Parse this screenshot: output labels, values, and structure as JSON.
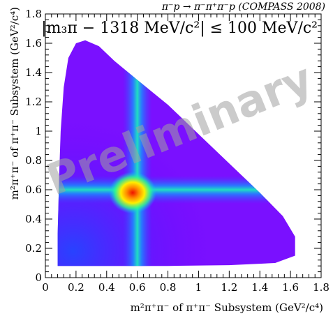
{
  "chart_data": {
    "type": "heatmap",
    "reaction_label": "π⁻p → π⁻π⁺π⁻p (COMPASS 2008)",
    "cut_label": "|m₃π − 1318 MeV/c²| ≤ 100 MeV/c²",
    "watermark": "Preliminary",
    "xlabel": "m²π⁺π⁻ of π⁺π⁻ Subsystem (GeV²/c⁴)",
    "ylabel": "m²π⁺π⁻ of π⁺π⁻ Subsystem (GeV²/c⁴)",
    "xlim": [
      0,
      1.8
    ],
    "ylim": [
      0,
      1.8
    ],
    "x_ticks": [
      "0",
      "0.2",
      "0.4",
      "0.6",
      "0.8",
      "1",
      "1.2",
      "1.4",
      "1.6",
      "1.8"
    ],
    "y_ticks": [
      "0",
      "0.2",
      "0.4",
      "0.6",
      "0.8",
      "1",
      "1.2",
      "1.4",
      "1.6",
      "1.8"
    ],
    "x_tick_values": [
      0,
      0.2,
      0.4,
      0.6,
      0.8,
      1.0,
      1.2,
      1.4,
      1.6,
      1.8
    ],
    "y_tick_values": [
      0,
      0.2,
      0.4,
      0.6,
      0.8,
      1.0,
      1.2,
      1.4,
      1.6,
      1.8
    ],
    "dalitz_boundary": [
      [
        0.08,
        0.08
      ],
      [
        0.08,
        0.3
      ],
      [
        0.09,
        0.7
      ],
      [
        0.1,
        1.0
      ],
      [
        0.12,
        1.3
      ],
      [
        0.15,
        1.5
      ],
      [
        0.2,
        1.6
      ],
      [
        0.26,
        1.62
      ],
      [
        0.35,
        1.58
      ],
      [
        0.45,
        1.48
      ],
      [
        0.6,
        1.35
      ],
      [
        0.8,
        1.18
      ],
      [
        1.0,
        0.98
      ],
      [
        1.2,
        0.78
      ],
      [
        1.4,
        0.58
      ],
      [
        1.55,
        0.42
      ],
      [
        1.63,
        0.28
      ],
      [
        1.63,
        0.15
      ],
      [
        1.5,
        0.1
      ],
      [
        1.2,
        0.085
      ],
      [
        0.8,
        0.08
      ],
      [
        0.4,
        0.08
      ]
    ],
    "bands": [
      {
        "name": "rho_x",
        "axis": "x",
        "center": 0.6,
        "width": 0.06
      },
      {
        "name": "rho_y",
        "axis": "y",
        "center": 0.6,
        "width": 0.06
      }
    ],
    "peak": {
      "x": 0.57,
      "y": 0.58
    },
    "colorscale": [
      "#6a00ff",
      "#3344ff",
      "#00c8ff",
      "#33ff88",
      "#ffee00",
      "#ff8800",
      "#ee1100"
    ]
  }
}
